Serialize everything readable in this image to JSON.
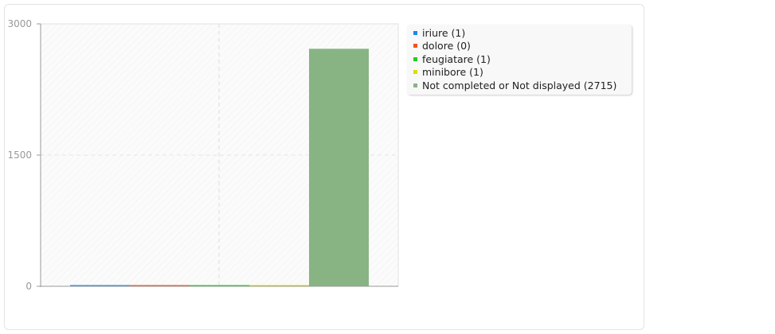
{
  "chart_data": {
    "type": "bar",
    "categories": [
      "iriure",
      "dolore",
      "feugiatare",
      "minibore",
      "Not completed or Not displayed"
    ],
    "values": [
      1,
      0,
      1,
      1,
      2715
    ],
    "colors": [
      "#1e88e5",
      "#f4511e",
      "#22cc22",
      "#dddd00",
      "#88b484"
    ],
    "legend_labels": [
      "iriure (1)",
      "dolore (0)",
      "feugiatare (1)",
      "minibore (1)",
      "Not completed or Not displayed (2715)"
    ],
    "yticks": [
      "0",
      "1500",
      "3000"
    ],
    "ylim": [
      0,
      3000
    ],
    "grid": true,
    "legend_position": "right"
  }
}
